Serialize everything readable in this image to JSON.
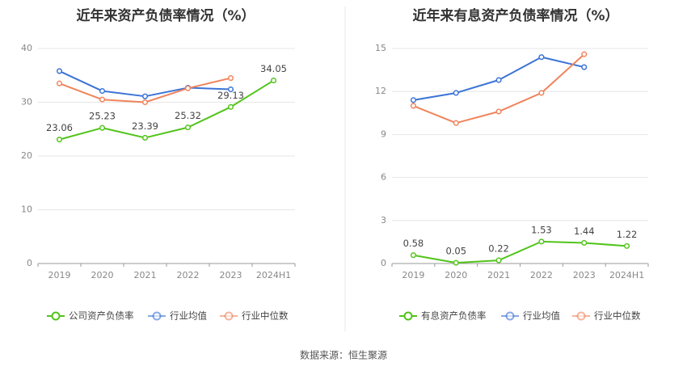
{
  "source": "数据来源：恒生聚源",
  "chart_data": [
    {
      "type": "line",
      "title": "近年来资产负债率情况（%）",
      "categories": [
        "2019",
        "2020",
        "2021",
        "2022",
        "2023",
        "2024H1"
      ],
      "ylim": [
        0,
        40
      ],
      "yticks": [
        0,
        10,
        20,
        30,
        40
      ],
      "grid": true,
      "legend_position": "bottom",
      "series": [
        {
          "name": "公司资产负债率",
          "color": "#52c41a",
          "values": [
            23.06,
            25.23,
            23.39,
            25.32,
            29.13,
            34.05
          ],
          "labels": [
            "23.06",
            "25.23",
            "23.39",
            "25.32",
            "29.13",
            "34.05"
          ]
        },
        {
          "name": "行业均值",
          "color": "#3b73d6",
          "values": [
            35.8,
            32.1,
            31.1,
            32.7,
            32.4,
            null
          ]
        },
        {
          "name": "行业中位数",
          "color": "#f0845c",
          "values": [
            33.5,
            30.5,
            30.0,
            32.6,
            34.5,
            null
          ]
        }
      ]
    },
    {
      "type": "line",
      "title": "近年来有息资产负债率情况（%）",
      "categories": [
        "2019",
        "2020",
        "2021",
        "2022",
        "2023",
        "2024H1"
      ],
      "ylim": [
        0,
        15
      ],
      "yticks": [
        0,
        3,
        6,
        9,
        12,
        15
      ],
      "grid": true,
      "legend_position": "bottom",
      "series": [
        {
          "name": "有息资产负债率",
          "color": "#52c41a",
          "values": [
            0.58,
            0.05,
            0.22,
            1.53,
            1.44,
            1.22
          ],
          "labels": [
            "0.58",
            "0.05",
            "0.22",
            "1.53",
            "1.44",
            "1.22"
          ]
        },
        {
          "name": "行业均值",
          "color": "#3b73d6",
          "values": [
            11.4,
            11.9,
            12.8,
            14.4,
            13.7,
            null
          ]
        },
        {
          "name": "行业中位数",
          "color": "#f0845c",
          "values": [
            11.0,
            9.8,
            10.6,
            11.9,
            14.6,
            null
          ]
        }
      ]
    }
  ]
}
